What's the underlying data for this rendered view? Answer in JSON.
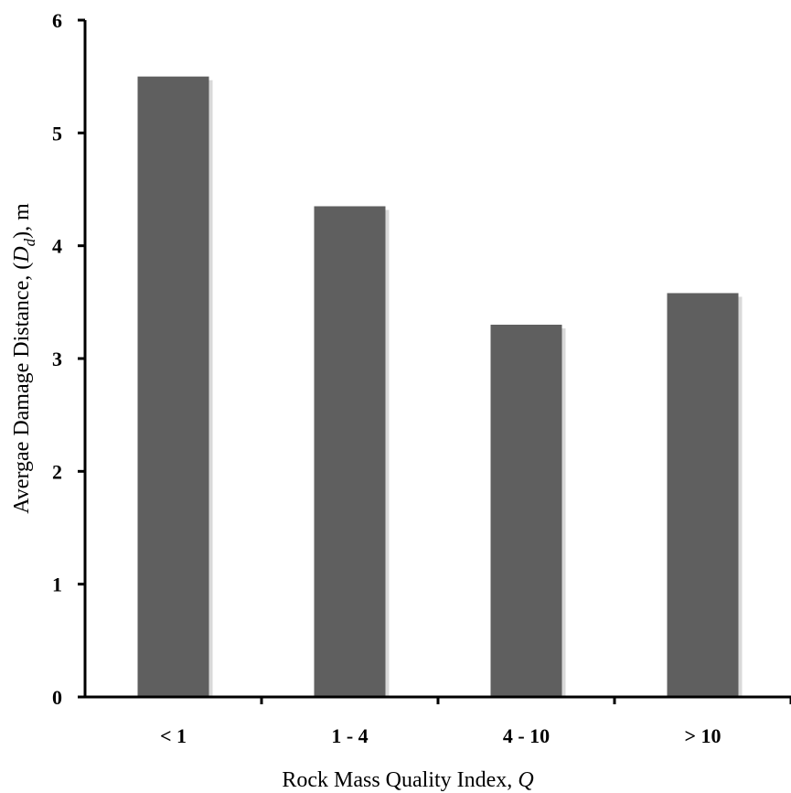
{
  "chart_data": {
    "type": "bar",
    "title": "",
    "categories": [
      "< 1",
      "1 - 4",
      "4 - 10",
      "> 10"
    ],
    "values": [
      5.5,
      4.35,
      3.3,
      3.58
    ],
    "xlabel_main": "Rock Mass Quality Index,",
    "xlabel_symbol": "Q",
    "ylabel_main": "Avergae Damage Distance, (",
    "ylabel_symbol": "D",
    "ylabel_subscript": "d",
    "ylabel_tail": "), m",
    "ylim": [
      0,
      6
    ],
    "yticks": [
      "0",
      "1",
      "2",
      "3",
      "4",
      "5",
      "6"
    ],
    "grid": false,
    "legend": "none",
    "bar_color": "#5f5f5f",
    "shadow_color": "#d9d9d9"
  }
}
